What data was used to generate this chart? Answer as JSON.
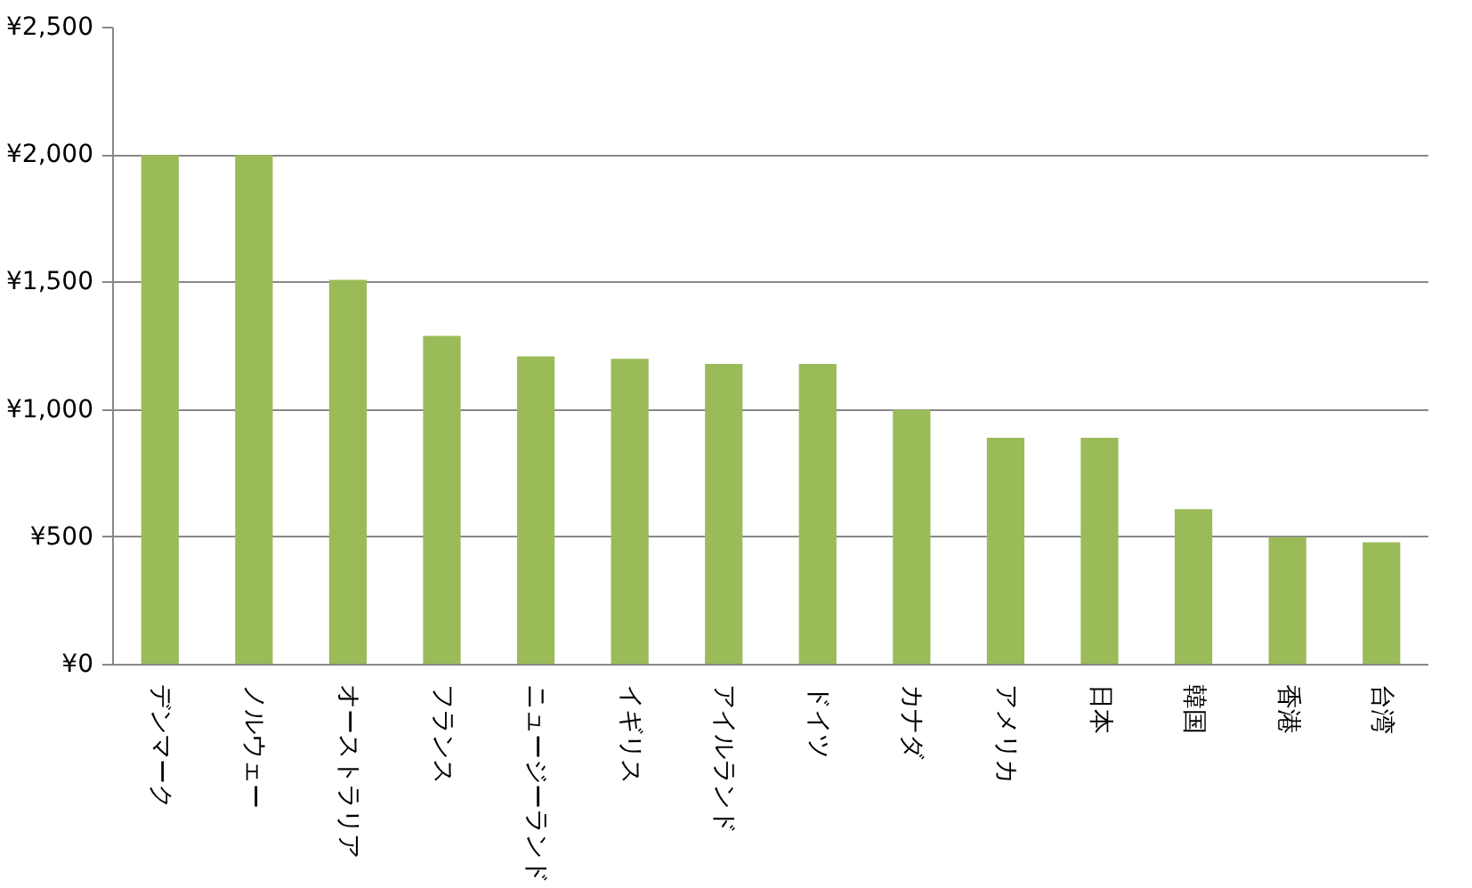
{
  "chart_data": {
    "type": "bar",
    "categories": [
      "デンマーク",
      "ノルウェー",
      "オーストラリア",
      "フランス",
      "ニュージーランド",
      "イギリス",
      "アイルランド",
      "ドイツ",
      "カナダ",
      "アメリカ",
      "日本",
      "韓国",
      "香港",
      "台湾"
    ],
    "values": [
      2000,
      2000,
      1510,
      1290,
      1210,
      1200,
      1180,
      1180,
      1000,
      890,
      890,
      610,
      500,
      480
    ],
    "color": "#9bbb59",
    "ylim": [
      0,
      2500
    ],
    "yticks": [
      {
        "value": 0,
        "label": "¥0"
      },
      {
        "value": 500,
        "label": "¥500"
      },
      {
        "value": 1000,
        "label": "¥1,000"
      },
      {
        "value": 1500,
        "label": "¥1,500"
      },
      {
        "value": 2000,
        "label": "¥2,000"
      },
      {
        "value": 2500,
        "label": "¥2,500"
      }
    ],
    "grid": "y"
  }
}
